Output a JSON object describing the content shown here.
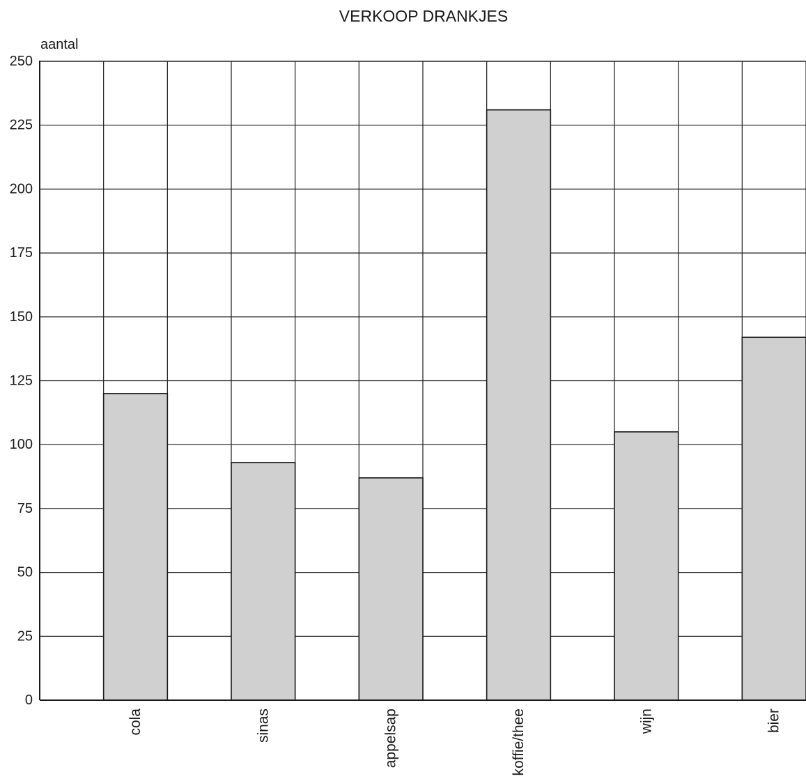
{
  "chart_data": {
    "type": "bar",
    "title": "VERKOOP DRANKJES",
    "xlabel": "",
    "ylabel": "aantal",
    "categories": [
      "cola",
      "sinas",
      "appelsap",
      "koffie/thee",
      "wijn",
      "bier"
    ],
    "values": [
      120,
      93,
      87,
      231,
      105,
      142
    ],
    "ylim": [
      0,
      250
    ],
    "yticks": [
      0,
      25,
      50,
      75,
      100,
      125,
      150,
      175,
      200,
      225,
      250
    ],
    "grid": true,
    "bar_color": "#d0d0d0",
    "line_color": "#1a1a1a"
  }
}
